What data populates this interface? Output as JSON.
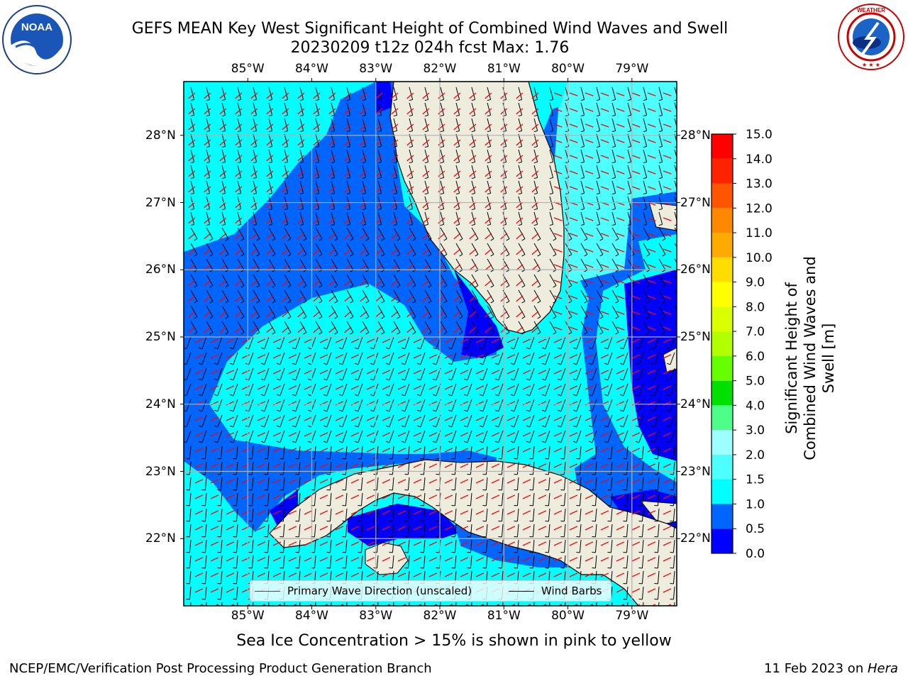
{
  "title": {
    "line1": "GEFS MEAN Key West Significant Height of Combined Wind Waves and Swell",
    "line2": "20230209 t12z 024h fcst   Max: 1.76"
  },
  "map": {
    "lon_labels": [
      "85°W",
      "84°W",
      "83°W",
      "82°W",
      "81°W",
      "80°W",
      "79°W"
    ],
    "lat_labels": [
      "28°N",
      "27°N",
      "26°N",
      "25°N",
      "24°N",
      "23°N",
      "22°N"
    ],
    "lon_range": [
      -86.0,
      -78.3
    ],
    "lat_range": [
      21.0,
      28.8
    ],
    "ocean_color": "#00ffff",
    "land_color": "#eeecdc"
  },
  "legend": {
    "wave_label": "Primary Wave Direction (unscaled)",
    "wave_color": "#ff0000",
    "wind_label": "Wind Barbs",
    "wind_color": "#000000"
  },
  "colorbar": {
    "label": "Significant Height of Combined Wind Waves and Swell [m]",
    "ticks": [
      "0.0",
      "0.5",
      "1.0",
      "1.5",
      "2.0",
      "3.0",
      "4.0",
      "5.0",
      "6.0",
      "7.0",
      "8.0",
      "9.0",
      "10.0",
      "11.0",
      "12.0",
      "13.0",
      "14.0",
      "15.0"
    ],
    "colors": [
      "#0000ff",
      "#0066ff",
      "#00ffff",
      "#4dffff",
      "#9dffff",
      "#4dff88",
      "#00e000",
      "#66ff00",
      "#b2ff00",
      "#d9ff00",
      "#ffff00",
      "#ffdd00",
      "#ffaa00",
      "#ff8800",
      "#ff5500",
      "#ff2200",
      "#ff0000"
    ]
  },
  "caption": "Sea Ice Concentration > 15% is shown in pink to yellow",
  "footer": {
    "left": "NCEP/EMC/Verification Post Processing Product Generation Branch",
    "right_date": "11 Feb 2023 on ",
    "right_host": "Hera"
  },
  "logos": {
    "noaa": "NOAA",
    "nws": "NATIONAL WEATHER SERVICE"
  }
}
